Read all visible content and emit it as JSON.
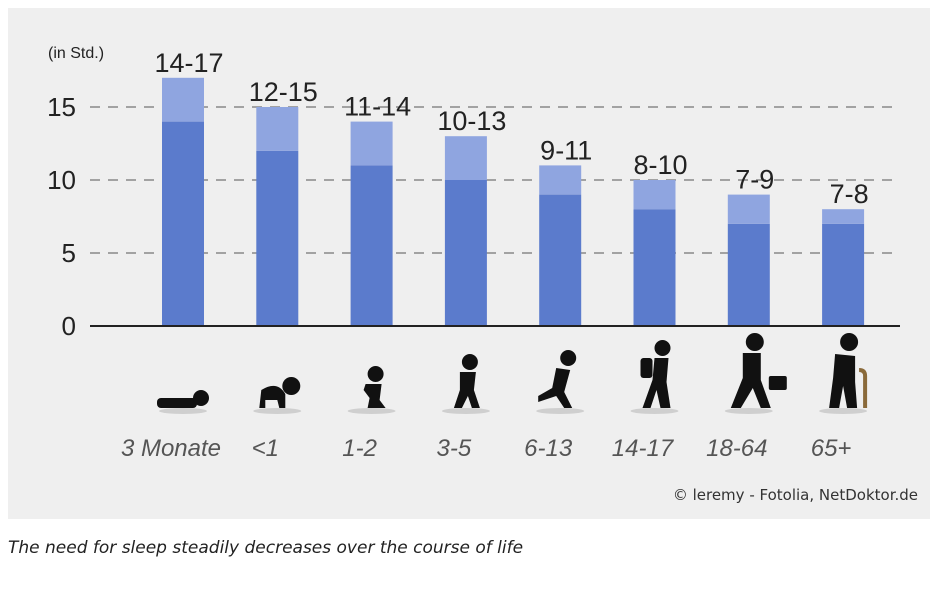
{
  "chart_data": {
    "type": "bar",
    "ylabel": "(in Std.)",
    "ylim": [
      0,
      17
    ],
    "yticks": [
      0,
      5,
      10,
      15
    ],
    "grid": "dashed horizontal",
    "categories": [
      "3 Monate",
      "<1",
      "1-2",
      "3-5",
      "6-13",
      "14-17",
      "18-64",
      "65+"
    ],
    "ranges": [
      {
        "low": 14,
        "high": 17,
        "label": "14-17"
      },
      {
        "low": 12,
        "high": 15,
        "label": "12-15"
      },
      {
        "low": 11,
        "high": 14,
        "label": "11-14"
      },
      {
        "low": 10,
        "high": 13,
        "label": "10-13"
      },
      {
        "low": 9,
        "high": 11,
        "label": "9-11"
      },
      {
        "low": 8,
        "high": 10,
        "label": "8-10"
      },
      {
        "low": 7,
        "high": 9,
        "label": "7-9"
      },
      {
        "low": 7,
        "high": 8,
        "label": "7-8"
      }
    ],
    "icons": [
      "lying-baby-icon",
      "crawling-baby-icon",
      "sitting-toddler-icon",
      "walking-child-icon",
      "running-child-icon",
      "teen-with-backpack-icon",
      "adult-with-briefcase-icon",
      "senior-with-cane-icon"
    ],
    "colors": {
      "base": "#5b7bcc",
      "range": "#8fa5e0",
      "axis": "#222222",
      "grid": "#888888",
      "text": "#222222",
      "category_text": "#555555",
      "icon": "#111111"
    }
  },
  "credit": "© leremy - Fotolia, NetDoktor.de",
  "caption": "The need for sleep steadily decreases over the course of life"
}
